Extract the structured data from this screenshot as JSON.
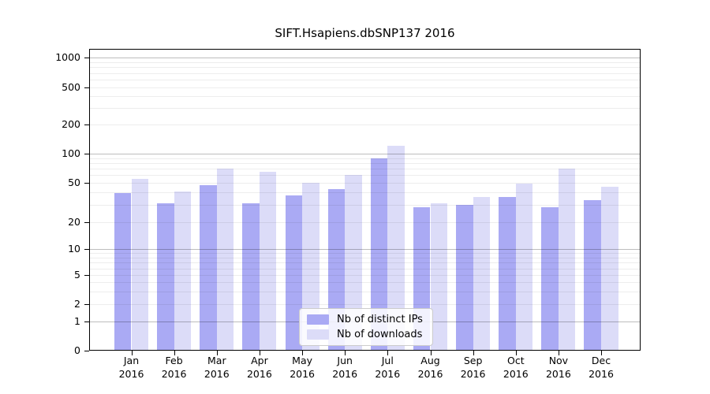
{
  "chart_data": {
    "type": "bar",
    "title": "SIFT.Hsapiens.dbSNP137 2016",
    "categories": [
      "Jan",
      "Feb",
      "Mar",
      "Apr",
      "May",
      "Jun",
      "Jul",
      "Aug",
      "Sep",
      "Oct",
      "Nov",
      "Dec"
    ],
    "year_label": "2016",
    "series": [
      {
        "name": "Nb of distinct IPs",
        "color": "#aaaaf4",
        "values": [
          39,
          31,
          47,
          31,
          37,
          43,
          90,
          28,
          30,
          36,
          28,
          33
        ]
      },
      {
        "name": "Nb of downloads",
        "color": "#dcdcf8",
        "values": [
          55,
          41,
          70,
          65,
          50,
          60,
          120,
          31,
          36,
          49,
          70,
          45
        ]
      }
    ],
    "yticks": [
      0,
      1,
      2,
      5,
      10,
      20,
      50,
      100,
      200,
      500,
      1000
    ],
    "yscale": "symlog",
    "ylim": [
      0,
      1200
    ],
    "grid": "both",
    "legend_position": "lower center",
    "axis_color": "#000000",
    "major_grid_color": "#bdbdbd",
    "minor_grid_color": "#ededed"
  }
}
